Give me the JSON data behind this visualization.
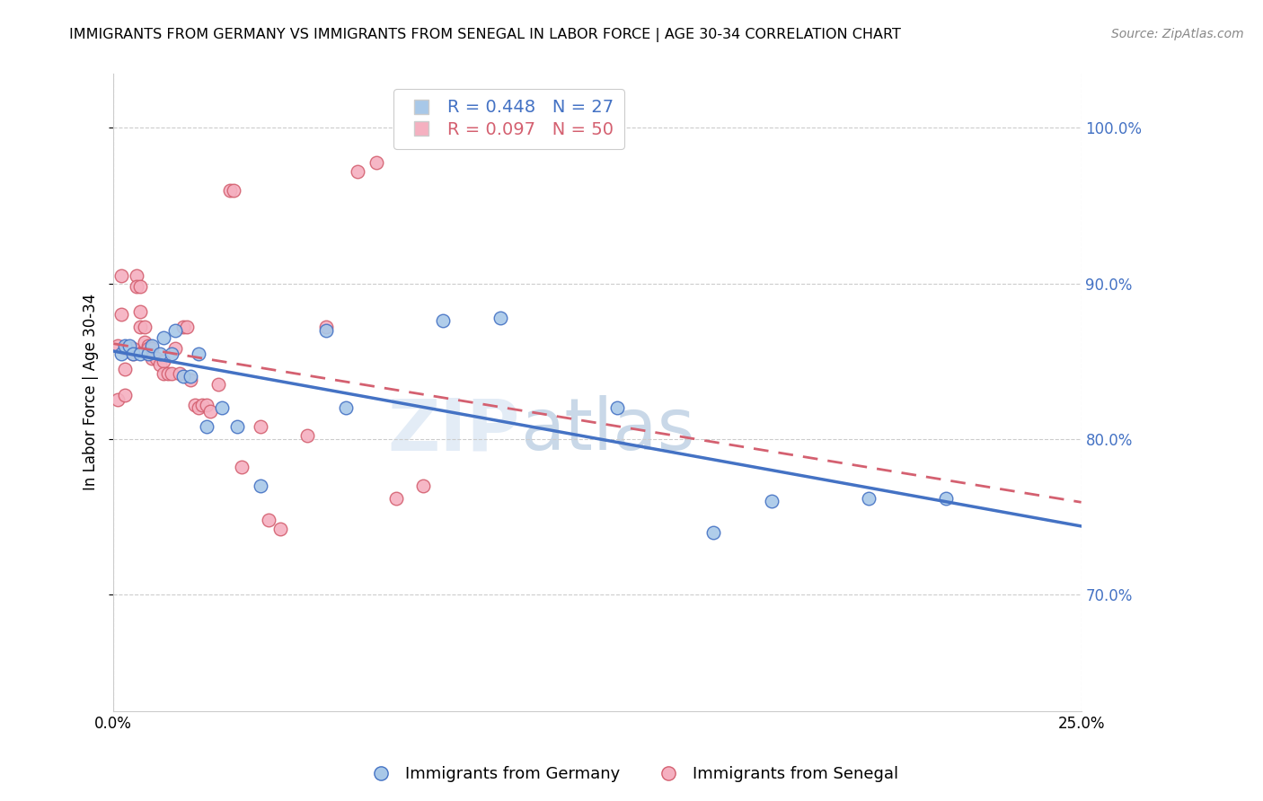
{
  "title": "IMMIGRANTS FROM GERMANY VS IMMIGRANTS FROM SENEGAL IN LABOR FORCE | AGE 30-34 CORRELATION CHART",
  "source": "Source: ZipAtlas.com",
  "ylabel": "In Labor Force | Age 30-34",
  "yticks": [
    0.7,
    0.8,
    0.9,
    1.0
  ],
  "xlim": [
    0.0,
    0.25
  ],
  "ylim": [
    0.625,
    1.035
  ],
  "germany_R": 0.448,
  "germany_N": 27,
  "senegal_R": 0.097,
  "senegal_N": 50,
  "germany_color": "#a8c8e8",
  "senegal_color": "#f5b0c0",
  "germany_line_color": "#4472c4",
  "senegal_line_color": "#d46070",
  "germany_x": [
    0.002,
    0.003,
    0.004,
    0.005,
    0.007,
    0.009,
    0.01,
    0.012,
    0.013,
    0.015,
    0.016,
    0.018,
    0.02,
    0.022,
    0.024,
    0.028,
    0.032,
    0.038,
    0.055,
    0.06,
    0.085,
    0.1,
    0.13,
    0.155,
    0.17,
    0.195,
    0.215
  ],
  "germany_y": [
    0.855,
    0.86,
    0.86,
    0.855,
    0.855,
    0.855,
    0.86,
    0.855,
    0.865,
    0.855,
    0.87,
    0.84,
    0.84,
    0.855,
    0.808,
    0.82,
    0.808,
    0.77,
    0.87,
    0.82,
    0.876,
    0.878,
    0.82,
    0.74,
    0.76,
    0.762,
    0.762
  ],
  "senegal_x": [
    0.001,
    0.001,
    0.002,
    0.002,
    0.003,
    0.003,
    0.003,
    0.004,
    0.005,
    0.005,
    0.006,
    0.006,
    0.007,
    0.007,
    0.007,
    0.008,
    0.008,
    0.009,
    0.009,
    0.01,
    0.01,
    0.011,
    0.012,
    0.013,
    0.013,
    0.014,
    0.015,
    0.016,
    0.017,
    0.018,
    0.019,
    0.02,
    0.021,
    0.022,
    0.023,
    0.024,
    0.025,
    0.027,
    0.03,
    0.031,
    0.033,
    0.038,
    0.04,
    0.043,
    0.05,
    0.055,
    0.063,
    0.068,
    0.073,
    0.08
  ],
  "senegal_y": [
    0.86,
    0.825,
    0.905,
    0.88,
    0.858,
    0.845,
    0.828,
    0.858,
    0.858,
    0.855,
    0.905,
    0.898,
    0.898,
    0.882,
    0.872,
    0.872,
    0.862,
    0.86,
    0.858,
    0.858,
    0.852,
    0.852,
    0.848,
    0.85,
    0.842,
    0.842,
    0.842,
    0.858,
    0.842,
    0.872,
    0.872,
    0.838,
    0.822,
    0.82,
    0.822,
    0.822,
    0.818,
    0.835,
    0.96,
    0.96,
    0.782,
    0.808,
    0.748,
    0.742,
    0.802,
    0.872,
    0.972,
    0.978,
    0.762,
    0.77
  ]
}
